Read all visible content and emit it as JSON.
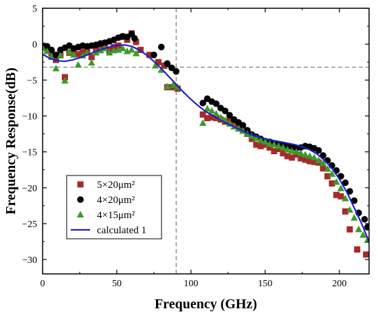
{
  "chart_data": {
    "type": "scatter",
    "xlabel": "Frequency (GHz)",
    "ylabel": "Frequency Response(dB)",
    "xlim": [
      0,
      220
    ],
    "ylim": [
      -32,
      5
    ],
    "x_ticks": [
      0,
      50,
      100,
      150,
      200
    ],
    "y_ticks": [
      5,
      0,
      -5,
      -10,
      -15,
      -20,
      -25,
      -30
    ],
    "legend_position": "lower-left",
    "reference_lines": {
      "vertical_x": 90,
      "horizontal_y": -3.2
    },
    "colors": {
      "s1": "#a52a2a",
      "s2": "#000000",
      "s3": "#3a9a2a",
      "fit": "#1f1fc8",
      "ref": "#777777"
    },
    "series": [
      {
        "name": "5×20μm²",
        "marker": "square",
        "points": [
          [
            0,
            -0.2
          ],
          [
            3,
            -0.6
          ],
          [
            6,
            -1.3
          ],
          [
            9,
            -2.2
          ],
          [
            12,
            -1.5
          ],
          [
            15,
            -4.6
          ],
          [
            18,
            -1.2
          ],
          [
            21,
            -0.9
          ],
          [
            24,
            -1.4
          ],
          [
            27,
            -1.1
          ],
          [
            30,
            -0.9
          ],
          [
            33,
            -1.8
          ],
          [
            36,
            -0.8
          ],
          [
            39,
            -0.6
          ],
          [
            42,
            -0.3
          ],
          [
            45,
            -0.9
          ],
          [
            48,
            -0.4
          ],
          [
            51,
            -0.2
          ],
          [
            54,
            1.0
          ],
          [
            57,
            0.6
          ],
          [
            60,
            1.5
          ],
          [
            63,
            0.3
          ],
          [
            66,
            -0.8
          ],
          [
            72,
            -1.5
          ],
          [
            78,
            -2.5
          ],
          [
            82,
            -3.0
          ],
          [
            84,
            -6.0
          ],
          [
            88,
            -6.0
          ],
          [
            91,
            -6.2
          ],
          [
            108,
            -9.8
          ],
          [
            111,
            -10.3
          ],
          [
            114,
            -10.2
          ],
          [
            117,
            -10.3
          ],
          [
            120,
            -10.5
          ],
          [
            123,
            -10.8
          ],
          [
            126,
            -10.6
          ],
          [
            129,
            -11.0
          ],
          [
            132,
            -11.4
          ],
          [
            135,
            -12.0
          ],
          [
            138,
            -12.5
          ],
          [
            141,
            -13.2
          ],
          [
            144,
            -14.0
          ],
          [
            147,
            -14.2
          ],
          [
            150,
            -14.0
          ],
          [
            153,
            -14.4
          ],
          [
            156,
            -14.9
          ],
          [
            159,
            -14.6
          ],
          [
            162,
            -15.2
          ],
          [
            165,
            -15.6
          ],
          [
            168,
            -15.8
          ],
          [
            171,
            -15.4
          ],
          [
            174,
            -15.9
          ],
          [
            177,
            -16.1
          ],
          [
            180,
            -16.3
          ],
          [
            183,
            -16.4
          ],
          [
            186,
            -16.5
          ],
          [
            189,
            -17.3
          ],
          [
            192,
            -18.4
          ],
          [
            195,
            -19.4
          ],
          [
            198,
            -21.0
          ],
          [
            201,
            -21.2
          ],
          [
            204,
            -23.3
          ],
          [
            207,
            -25.8
          ],
          [
            212,
            -28.6
          ],
          [
            218,
            -29.3
          ]
        ]
      },
      {
        "name": "4×20μm²",
        "marker": "circle",
        "points": [
          [
            0,
            -0.3
          ],
          [
            3,
            -0.3
          ],
          [
            6,
            -0.8
          ],
          [
            9,
            -1.5
          ],
          [
            12,
            -0.8
          ],
          [
            15,
            -0.5
          ],
          [
            18,
            -0.2
          ],
          [
            21,
            -0.6
          ],
          [
            24,
            -0.4
          ],
          [
            27,
            -0.2
          ],
          [
            30,
            -0.3
          ],
          [
            33,
            -0.2
          ],
          [
            36,
            -0.1
          ],
          [
            39,
            0.1
          ],
          [
            42,
            0.2
          ],
          [
            45,
            0.4
          ],
          [
            48,
            0.6
          ],
          [
            51,
            0.9
          ],
          [
            54,
            1.1
          ],
          [
            57,
            1.0
          ],
          [
            60,
            1.4
          ],
          [
            62,
            0.8
          ],
          [
            75,
            -1.5
          ],
          [
            80,
            -0.4
          ],
          [
            84,
            -2.7
          ],
          [
            87,
            -3.3
          ],
          [
            90,
            -3.8
          ],
          [
            108,
            -8.2
          ],
          [
            111,
            -7.6
          ],
          [
            114,
            -8.0
          ],
          [
            117,
            -8.3
          ],
          [
            120,
            -8.9
          ],
          [
            123,
            -9.3
          ],
          [
            126,
            -9.9
          ],
          [
            129,
            -10.5
          ],
          [
            132,
            -10.9
          ],
          [
            135,
            -11.3
          ],
          [
            138,
            -12.0
          ],
          [
            141,
            -12.6
          ],
          [
            144,
            -12.9
          ],
          [
            147,
            -13.2
          ],
          [
            150,
            -13.5
          ],
          [
            153,
            -13.6
          ],
          [
            156,
            -13.8
          ],
          [
            159,
            -14.0
          ],
          [
            162,
            -14.1
          ],
          [
            165,
            -14.2
          ],
          [
            168,
            -14.3
          ],
          [
            171,
            -14.5
          ],
          [
            174,
            -14.4
          ],
          [
            177,
            -14.2
          ],
          [
            180,
            -14.3
          ],
          [
            183,
            -14.5
          ],
          [
            186,
            -14.8
          ],
          [
            189,
            -15.5
          ],
          [
            192,
            -16.2
          ],
          [
            195,
            -16.9
          ],
          [
            198,
            -17.6
          ],
          [
            201,
            -18.4
          ],
          [
            204,
            -19.3
          ],
          [
            207,
            -20.5
          ],
          [
            210,
            -21.8
          ],
          [
            213,
            -23.5
          ],
          [
            217,
            -24.4
          ],
          [
            219,
            -25.5
          ]
        ]
      },
      {
        "name": "4×15μm²",
        "marker": "triangle",
        "points": [
          [
            0,
            -0.5
          ],
          [
            3,
            -1.0
          ],
          [
            6,
            -1.8
          ],
          [
            9,
            -3.4
          ],
          [
            12,
            -1.6
          ],
          [
            15,
            -5.1
          ],
          [
            18,
            -1.1
          ],
          [
            21,
            -1.5
          ],
          [
            24,
            -2.9
          ],
          [
            27,
            -1.6
          ],
          [
            30,
            -1.2
          ],
          [
            33,
            -2.6
          ],
          [
            36,
            -1.2
          ],
          [
            39,
            -0.9
          ],
          [
            42,
            -0.6
          ],
          [
            45,
            -1.2
          ],
          [
            48,
            -0.9
          ],
          [
            51,
            -0.8
          ],
          [
            54,
            -0.6
          ],
          [
            57,
            -1.0
          ],
          [
            60,
            -0.8
          ],
          [
            63,
            -1.3
          ],
          [
            76,
            -3.0
          ],
          [
            80,
            -3.6
          ],
          [
            84,
            -5.9
          ],
          [
            88,
            -5.7
          ],
          [
            91,
            -6.0
          ],
          [
            108,
            -11.0
          ],
          [
            111,
            -9.0
          ],
          [
            114,
            -9.3
          ],
          [
            117,
            -9.7
          ],
          [
            120,
            -10.2
          ],
          [
            123,
            -10.6
          ],
          [
            126,
            -11.1
          ],
          [
            129,
            -11.5
          ],
          [
            132,
            -11.8
          ],
          [
            135,
            -12.1
          ],
          [
            138,
            -12.5
          ],
          [
            141,
            -12.8
          ],
          [
            144,
            -13.1
          ],
          [
            147,
            -13.4
          ],
          [
            150,
            -13.6
          ],
          [
            153,
            -13.9
          ],
          [
            156,
            -14.0
          ],
          [
            159,
            -14.2
          ],
          [
            162,
            -14.4
          ],
          [
            165,
            -14.7
          ],
          [
            168,
            -14.9
          ],
          [
            171,
            -15.0
          ],
          [
            174,
            -15.2
          ],
          [
            177,
            -15.4
          ],
          [
            180,
            -15.6
          ],
          [
            183,
            -15.8
          ],
          [
            186,
            -16.2
          ],
          [
            189,
            -16.6
          ],
          [
            192,
            -17.4
          ],
          [
            195,
            -18.1
          ],
          [
            198,
            -19.2
          ],
          [
            201,
            -20.1
          ],
          [
            204,
            -21.5
          ],
          [
            207,
            -23.1
          ],
          [
            210,
            -24.2
          ],
          [
            213,
            -25.8
          ],
          [
            216,
            -26.6
          ],
          [
            219,
            -27.3
          ]
        ]
      },
      {
        "name": "calculated 1",
        "marker": "line",
        "points": [
          [
            0,
            -1.4
          ],
          [
            5,
            -2.0
          ],
          [
            10,
            -2.3
          ],
          [
            15,
            -2.4
          ],
          [
            20,
            -2.2
          ],
          [
            25,
            -1.9
          ],
          [
            30,
            -1.5
          ],
          [
            35,
            -1.1
          ],
          [
            40,
            -0.7
          ],
          [
            45,
            -0.4
          ],
          [
            50,
            -0.2
          ],
          [
            55,
            -0.1
          ],
          [
            60,
            -0.3
          ],
          [
            65,
            -0.8
          ],
          [
            70,
            -1.5
          ],
          [
            75,
            -2.4
          ],
          [
            80,
            -3.4
          ],
          [
            85,
            -4.5
          ],
          [
            90,
            -5.6
          ],
          [
            95,
            -6.7
          ],
          [
            100,
            -7.7
          ],
          [
            105,
            -8.6
          ],
          [
            110,
            -9.4
          ],
          [
            115,
            -10.0
          ],
          [
            120,
            -10.6
          ],
          [
            125,
            -11.1
          ],
          [
            130,
            -11.6
          ],
          [
            135,
            -12.1
          ],
          [
            140,
            -12.6
          ],
          [
            145,
            -12.9
          ],
          [
            150,
            -13.2
          ],
          [
            155,
            -13.4
          ],
          [
            160,
            -13.6
          ],
          [
            165,
            -13.8
          ],
          [
            170,
            -14.0
          ],
          [
            175,
            -14.3
          ],
          [
            180,
            -14.7
          ],
          [
            185,
            -15.3
          ],
          [
            190,
            -16.2
          ],
          [
            195,
            -17.3
          ],
          [
            200,
            -18.8
          ],
          [
            205,
            -20.6
          ],
          [
            210,
            -22.8
          ],
          [
            215,
            -25.0
          ],
          [
            220,
            -27.5
          ]
        ]
      }
    ]
  }
}
